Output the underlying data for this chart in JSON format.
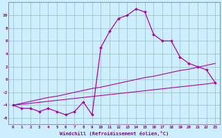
{
  "xlabel": "Windchill (Refroidissement éolien,°C)",
  "background_color": "#cceeff",
  "line_color": "#aa00aa",
  "grid_color": "#99bbbb",
  "text_color": "#880088",
  "xlim": [
    -0.5,
    23.5
  ],
  "ylim": [
    -7,
    12
  ],
  "xticks": [
    0,
    1,
    2,
    3,
    4,
    5,
    6,
    7,
    8,
    9,
    10,
    11,
    12,
    13,
    14,
    15,
    16,
    17,
    18,
    19,
    20,
    21,
    22,
    23
  ],
  "yticks": [
    -6,
    -4,
    -2,
    0,
    2,
    4,
    6,
    8,
    10
  ],
  "main_y": [
    -4,
    -4.5,
    -4.5,
    -5.0,
    -4.5,
    -5.0,
    -5.5,
    -5.0,
    -3.5,
    -5.5,
    5.0,
    7.5,
    9.5,
    10.0,
    11.0,
    10.5,
    7.0,
    6.0,
    6.0,
    3.5,
    2.5,
    2.0,
    1.5,
    -0.5
  ],
  "line1_y": [
    -4.0,
    -3.7,
    -3.4,
    -3.1,
    -2.8,
    -2.6,
    -2.3,
    -2.0,
    -1.7,
    -1.4,
    -1.2,
    -0.9,
    -0.6,
    -0.3,
    0.0,
    0.3,
    0.5,
    0.8,
    1.1,
    1.4,
    1.6,
    1.9,
    2.2,
    2.5
  ],
  "line2_y": [
    -4.0,
    -3.85,
    -3.7,
    -3.55,
    -3.4,
    -3.25,
    -3.1,
    -2.95,
    -2.8,
    -2.65,
    -2.5,
    -2.35,
    -2.2,
    -2.05,
    -1.9,
    -1.75,
    -1.6,
    -1.45,
    -1.3,
    -1.15,
    -1.0,
    -0.85,
    -0.7,
    -0.5
  ],
  "x": [
    0,
    1,
    2,
    3,
    4,
    5,
    6,
    7,
    8,
    9,
    10,
    11,
    12,
    13,
    14,
    15,
    16,
    17,
    18,
    19,
    20,
    21,
    22,
    23
  ]
}
